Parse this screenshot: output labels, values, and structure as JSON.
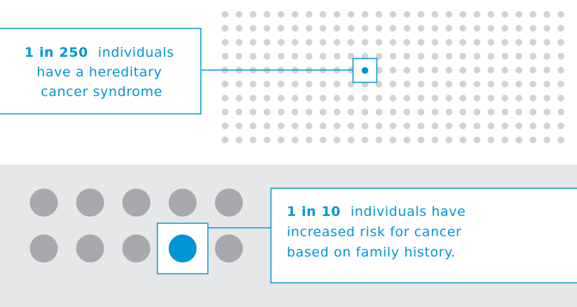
{
  "top": {
    "emphasis": "1 in 250",
    "lines": [
      "individuals",
      "have a hereditary",
      "cancer syndrome"
    ]
  },
  "bottom": {
    "emphasis": "1 in 10",
    "lines": [
      "individuals have",
      "increased risk for cancer",
      "based on family history."
    ]
  }
}
